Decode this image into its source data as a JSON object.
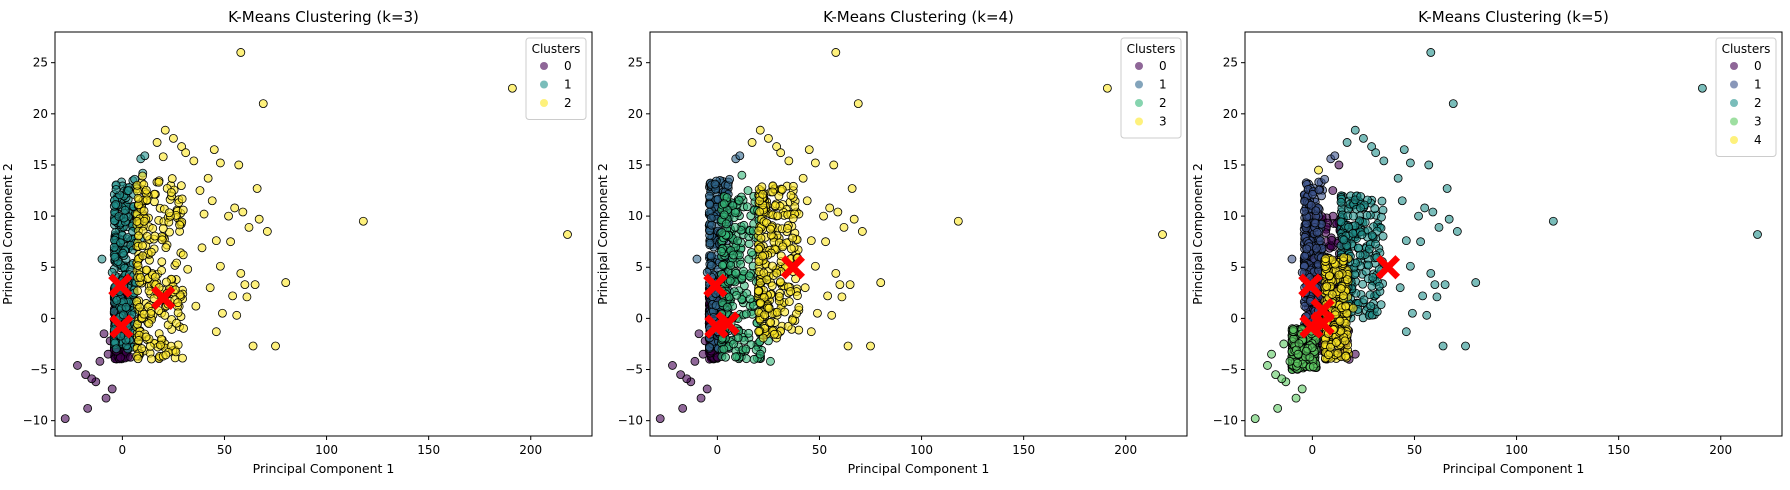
{
  "colors": {
    "viridis3": [
      "#440154",
      "#21918c",
      "#fde725"
    ],
    "viridis4": [
      "#440154",
      "#31688e",
      "#35b779",
      "#fde725"
    ],
    "viridis5": [
      "#440154",
      "#3b528b",
      "#21918c",
      "#5ec962",
      "#fde725"
    ],
    "centroid": "#ff0000"
  },
  "chart_data": [
    {
      "type": "scatter",
      "title": "K-Means Clustering (k=3)",
      "xlabel": "Principal Component 1",
      "ylabel": "Principal Component 2",
      "xlim": [
        -33,
        230
      ],
      "ylim": [
        -11.5,
        28
      ],
      "xticks": [
        0,
        50,
        100,
        150,
        200
      ],
      "yticks": [
        -10,
        -5,
        0,
        5,
        10,
        15,
        20,
        25
      ],
      "legend": {
        "title": "Clusters",
        "labels": [
          "0",
          "1",
          "2"
        ],
        "placement": "top-right"
      },
      "centroids": [
        [
          -1,
          3.2
        ],
        [
          -0.5,
          -0.8
        ],
        [
          20,
          2
        ]
      ],
      "clusters": [
        {
          "label": "0",
          "core": [
            [
              -4,
              3,
              -4,
              3
            ]
          ],
          "points": [
            [
              -28,
              -9.8
            ],
            [
              -17,
              -8.8
            ],
            [
              -13,
              -6.2
            ],
            [
              -8,
              -7.8
            ],
            [
              -5,
              -6.9
            ],
            [
              -22,
              -4.6
            ],
            [
              -18,
              -5.5
            ],
            [
              -15,
              -5.9
            ],
            [
              -11,
              -4.2
            ],
            [
              -7,
              -3.5
            ],
            [
              -3,
              -3.2
            ],
            [
              -6,
              -2.2
            ],
            [
              -9,
              -1.5
            ],
            [
              0,
              -2.5
            ],
            [
              2,
              -3.3
            ],
            [
              4,
              -3.8
            ],
            [
              -2,
              -1.4
            ]
          ]
        },
        {
          "label": "1",
          "core": [
            [
              -4,
              7,
              -3,
              13.5
            ]
          ],
          "points": [
            [
              -10,
              5.8
            ],
            [
              -5,
              4.5
            ],
            [
              3,
              12.5
            ],
            [
              6,
              13.6
            ],
            [
              8,
              11.2
            ],
            [
              10,
              14.2
            ],
            [
              9,
              15.6
            ],
            [
              11,
              15.9
            ],
            [
              7,
              10
            ],
            [
              5,
              8.5
            ],
            [
              9,
              7.8
            ]
          ]
        },
        {
          "label": "2",
          "core": [
            [
              7,
              30,
              -4,
              14
            ]
          ],
          "points": [
            [
              58,
              26
            ],
            [
              69,
              21
            ],
            [
              191,
              22.5
            ],
            [
              118,
              9.5
            ],
            [
              218,
              8.2
            ],
            [
              21,
              18.4
            ],
            [
              25,
              17.6
            ],
            [
              29,
              16.8
            ],
            [
              17,
              17.2
            ],
            [
              20,
              15.8
            ],
            [
              31,
              16.2
            ],
            [
              35,
              15.4
            ],
            [
              45,
              16.5
            ],
            [
              48,
              15.2
            ],
            [
              57,
              15
            ],
            [
              42,
              13.7
            ],
            [
              38,
              12.5
            ],
            [
              44,
              11.5
            ],
            [
              40,
              10.2
            ],
            [
              52,
              10
            ],
            [
              55,
              10.8
            ],
            [
              59,
              10.4
            ],
            [
              66,
              12.7
            ],
            [
              62,
              8.9
            ],
            [
              71,
              8.5
            ],
            [
              67,
              9.7
            ],
            [
              53,
              7.5
            ],
            [
              46,
              7.6
            ],
            [
              48,
              5.1
            ],
            [
              58,
              4.4
            ],
            [
              60,
              3.3
            ],
            [
              61,
              2.1
            ],
            [
              65,
              3.3
            ],
            [
              54,
              2.2
            ],
            [
              49,
              0.5
            ],
            [
              46,
              -1.3
            ],
            [
              56,
              0.3
            ],
            [
              64,
              -2.7
            ],
            [
              75,
              -2.7
            ],
            [
              80,
              3.5
            ],
            [
              43,
              3
            ],
            [
              36,
              1.2
            ],
            [
              32,
              4.8
            ],
            [
              39,
              6.9
            ]
          ]
        }
      ]
    },
    {
      "type": "scatter",
      "title": "K-Means Clustering (k=4)",
      "xlabel": "Principal Component 1",
      "ylabel": "Principal Component 2",
      "xlim": [
        -33,
        230
      ],
      "ylim": [
        -11.5,
        28
      ],
      "xticks": [
        0,
        50,
        100,
        150,
        200
      ],
      "yticks": [
        -10,
        -5,
        0,
        5,
        10,
        15,
        20,
        25
      ],
      "legend": {
        "title": "Clusters",
        "labels": [
          "0",
          "1",
          "2",
          "3"
        ],
        "placement": "top-right"
      },
      "centroids": [
        [
          -1,
          3.2
        ],
        [
          -0.5,
          -0.8
        ],
        [
          5,
          -0.5
        ],
        [
          37,
          5
        ]
      ],
      "clusters": [
        {
          "label": "0",
          "core": [
            [
              -4,
              2,
              -4,
              3
            ]
          ],
          "points": [
            [
              -28,
              -9.8
            ],
            [
              -17,
              -8.8
            ],
            [
              -13,
              -6.2
            ],
            [
              -8,
              -7.8
            ],
            [
              -5,
              -6.9
            ],
            [
              -22,
              -4.6
            ],
            [
              -18,
              -5.5
            ],
            [
              -15,
              -5.9
            ],
            [
              -11,
              -4.2
            ],
            [
              -7,
              -3.5
            ],
            [
              -3,
              -3.2
            ],
            [
              -6,
              -2.2
            ],
            [
              -9,
              -1.5
            ]
          ]
        },
        {
          "label": "1",
          "core": [
            [
              -4,
              6,
              -3,
              13.5
            ]
          ],
          "points": [
            [
              -10,
              5.8
            ],
            [
              -5,
              4.5
            ],
            [
              6,
              13.6
            ],
            [
              9,
              15.6
            ],
            [
              11,
              15.9
            ],
            [
              8,
              11.2
            ]
          ]
        },
        {
          "label": "2",
          "core": [
            [
              2,
              22,
              -4,
              12
            ]
          ],
          "points": [
            [
              4,
              -3.8
            ],
            [
              14,
              -3
            ],
            [
              18,
              -4
            ],
            [
              21,
              -3.5
            ],
            [
              25,
              -2.2
            ],
            [
              26,
              -4.2
            ],
            [
              24,
              4
            ],
            [
              15,
              12.5
            ],
            [
              12,
              14
            ]
          ]
        },
        {
          "label": "3",
          "core": [
            [
              20,
              40,
              -2,
              13
            ]
          ],
          "points": [
            [
              58,
              26
            ],
            [
              69,
              21
            ],
            [
              191,
              22.5
            ],
            [
              118,
              9.5
            ],
            [
              218,
              8.2
            ],
            [
              21,
              18.4
            ],
            [
              25,
              17.6
            ],
            [
              29,
              16.8
            ],
            [
              17,
              17.2
            ],
            [
              31,
              16.2
            ],
            [
              35,
              15.4
            ],
            [
              45,
              16.5
            ],
            [
              48,
              15.2
            ],
            [
              57,
              15
            ],
            [
              42,
              13.7
            ],
            [
              44,
              11.5
            ],
            [
              52,
              10
            ],
            [
              55,
              10.8
            ],
            [
              59,
              10.4
            ],
            [
              66,
              12.7
            ],
            [
              62,
              8.9
            ],
            [
              71,
              8.5
            ],
            [
              67,
              9.7
            ],
            [
              53,
              7.5
            ],
            [
              46,
              7.6
            ],
            [
              48,
              5.1
            ],
            [
              58,
              4.4
            ],
            [
              60,
              3.3
            ],
            [
              61,
              2.1
            ],
            [
              65,
              3.3
            ],
            [
              54,
              2.2
            ],
            [
              49,
              0.5
            ],
            [
              46,
              -1.3
            ],
            [
              56,
              0.3
            ],
            [
              64,
              -2.7
            ],
            [
              75,
              -2.7
            ],
            [
              80,
              3.5
            ],
            [
              43,
              3
            ]
          ]
        }
      ]
    },
    {
      "type": "scatter",
      "title": "K-Means Clustering (k=5)",
      "xlabel": "Principal Component 1",
      "ylabel": "Principal Component 2",
      "xlim": [
        -33,
        230
      ],
      "ylim": [
        -11.5,
        28
      ],
      "xticks": [
        0,
        50,
        100,
        150,
        200
      ],
      "yticks": [
        -10,
        -5,
        0,
        5,
        10,
        15,
        20,
        25
      ],
      "legend": {
        "title": "Clusters",
        "labels": [
          "0",
          "1",
          "2",
          "3",
          "4"
        ],
        "placement": "top-right"
      },
      "centroids": [
        [
          -1,
          3.2
        ],
        [
          -0.5,
          -0.8
        ],
        [
          5,
          0.8
        ],
        [
          5,
          -0.5
        ],
        [
          37,
          5
        ]
      ],
      "clusters": [
        {
          "label": "0",
          "core": [
            [
              -2,
              18,
              -4,
              10
            ]
          ],
          "points": [
            [
              14,
              -3
            ],
            [
              18,
              -4
            ],
            [
              21,
              -3.5
            ],
            [
              10,
              12.5
            ],
            [
              13,
              15
            ]
          ]
        },
        {
          "label": "1",
          "core": [
            [
              -4,
              5,
              -2,
              13.5
            ]
          ],
          "points": [
            [
              -10,
              5.8
            ],
            [
              -5,
              4.5
            ],
            [
              6,
              13.6
            ],
            [
              9,
              15.6
            ],
            [
              11,
              15.9
            ]
          ]
        },
        {
          "label": "2",
          "core": [
            [
              14,
              35,
              0,
              12
            ]
          ],
          "points": [
            [
              58,
              26
            ],
            [
              69,
              21
            ],
            [
              191,
              22.5
            ],
            [
              118,
              9.5
            ],
            [
              218,
              8.2
            ],
            [
              21,
              18.4
            ],
            [
              25,
              17.6
            ],
            [
              29,
              16.8
            ],
            [
              17,
              17.2
            ],
            [
              31,
              16.2
            ],
            [
              35,
              15.4
            ],
            [
              45,
              16.5
            ],
            [
              48,
              15.2
            ],
            [
              57,
              15
            ],
            [
              42,
              13.7
            ],
            [
              44,
              11.5
            ],
            [
              52,
              10
            ],
            [
              55,
              10.8
            ],
            [
              59,
              10.4
            ],
            [
              66,
              12.7
            ],
            [
              62,
              8.9
            ],
            [
              71,
              8.5
            ],
            [
              67,
              9.7
            ],
            [
              53,
              7.5
            ],
            [
              46,
              7.6
            ],
            [
              48,
              5.1
            ],
            [
              58,
              4.4
            ],
            [
              60,
              3.3
            ],
            [
              61,
              2.1
            ],
            [
              65,
              3.3
            ],
            [
              54,
              2.2
            ],
            [
              49,
              0.5
            ],
            [
              46,
              -1.3
            ],
            [
              56,
              0.3
            ],
            [
              64,
              -2.7
            ],
            [
              75,
              -2.7
            ],
            [
              80,
              3.5
            ],
            [
              43,
              3
            ]
          ]
        },
        {
          "label": "3",
          "core": [
            [
              -10,
              2,
              -5,
              -1
            ]
          ],
          "points": [
            [
              -28,
              -9.8
            ],
            [
              -17,
              -8.8
            ],
            [
              -13,
              -6.2
            ],
            [
              -8,
              -7.8
            ],
            [
              -5,
              -6.9
            ],
            [
              -22,
              -4.6
            ],
            [
              -18,
              -5.5
            ],
            [
              -15,
              -5.9
            ],
            [
              -11,
              -4.2
            ],
            [
              -7,
              -3.5
            ],
            [
              -3,
              -3.2
            ],
            [
              -20,
              -3.5
            ],
            [
              -14,
              -2.5
            ]
          ]
        },
        {
          "label": "4",
          "core": [
            [
              6,
              18,
              -4,
              6
            ]
          ],
          "points": [
            [
              3,
              14.5
            ],
            [
              20,
              1
            ],
            [
              16,
              -2.2
            ]
          ]
        }
      ]
    }
  ]
}
